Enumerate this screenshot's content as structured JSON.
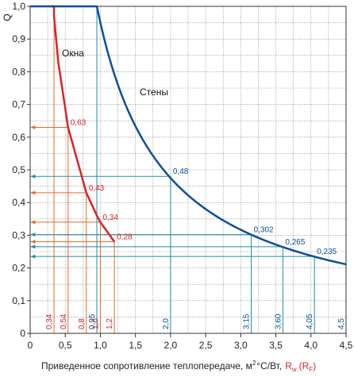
{
  "chart_data": {
    "type": "line",
    "ylabel": "Q",
    "xlabel_main": "Приведенное сопротивление теплопередаче, м",
    "xlabel_sup": "2",
    "xlabel_unit": "°С/Вт,",
    "xlabel_rw": "R",
    "xlabel_rw_sub": "w",
    "xlabel_rr_open": "(R",
    "xlabel_rr_sub": "F",
    "xlabel_rr_close": ")",
    "xlim": [
      0,
      4.5
    ],
    "ylim": [
      0,
      1.0
    ],
    "x_ticks": [
      "0",
      "0,5",
      "1,0",
      "1,5",
      "2,0",
      "2,5",
      "3,0",
      "3,5",
      "4,0",
      "4,5"
    ],
    "x_tick_values": [
      0,
      0.5,
      1.0,
      1.5,
      2.0,
      2.5,
      3.0,
      3.5,
      4.0,
      4.5
    ],
    "y_ticks": [
      "0",
      "0,1",
      "0,2",
      "0,3",
      "0,4",
      "0,5",
      "0,6",
      "0,7",
      "0,8",
      "0,9",
      "1,0"
    ],
    "y_tick_values": [
      0,
      0.1,
      0.2,
      0.3,
      0.4,
      0.5,
      0.6,
      0.7,
      0.8,
      0.9,
      1.0
    ],
    "colors": {
      "windows": "#d8232a",
      "walls": "#0b4f9c",
      "windows_guides": "#e86a2a",
      "walls_guides": "#1e8fa8"
    },
    "series": [
      {
        "name": "Окна",
        "x": [
          0.3,
          0.34,
          0.34,
          0.4,
          0.54,
          0.8,
          0.95,
          1.0,
          1.1,
          1.2
        ],
        "y": [
          1.0,
          1.0,
          0.97,
          0.83,
          0.63,
          0.43,
          0.36,
          0.34,
          0.31,
          0.28
        ]
      },
      {
        "name": "Стены",
        "x": [
          0.0,
          0.95,
          0.95,
          1.2,
          1.5,
          2.0,
          2.5,
          3.0,
          3.15,
          3.6,
          4.05,
          4.5
        ],
        "y": [
          1.0,
          1.0,
          1.0,
          0.79,
          0.63,
          0.475,
          0.38,
          0.316,
          0.302,
          0.265,
          0.235,
          0.211
        ]
      }
    ],
    "annotations_windows": [
      {
        "x": 0.34,
        "y": 1.0,
        "xlabel": "0,34",
        "ylabel": ""
      },
      {
        "x": 0.54,
        "y": 0.63,
        "xlabel": "0,54",
        "ylabel": "0,63"
      },
      {
        "x": 0.8,
        "y": 0.43,
        "xlabel": "0,8",
        "ylabel": "0,43"
      },
      {
        "x": 1.0,
        "y": 0.34,
        "xlabel": "1,0",
        "ylabel": "0,34"
      },
      {
        "x": 1.2,
        "y": 0.28,
        "xlabel": "1,2",
        "ylabel": "0,28"
      }
    ],
    "annotations_walls": [
      {
        "x": 0.95,
        "y": 1.0,
        "xlabel": "0,95",
        "ylabel": ""
      },
      {
        "x": 2.0,
        "y": 0.48,
        "xlabel": "2,0",
        "ylabel": "0,48"
      },
      {
        "x": 3.15,
        "y": 0.302,
        "xlabel": "3,15",
        "ylabel": "0,302"
      },
      {
        "x": 3.6,
        "y": 0.265,
        "xlabel": "3,60",
        "ylabel": "0,265"
      },
      {
        "x": 4.05,
        "y": 0.235,
        "xlabel": "4,05",
        "ylabel": "0,235"
      },
      {
        "x": 4.5,
        "y": 0.211,
        "xlabel": "4,5",
        "ylabel": ""
      }
    ]
  }
}
